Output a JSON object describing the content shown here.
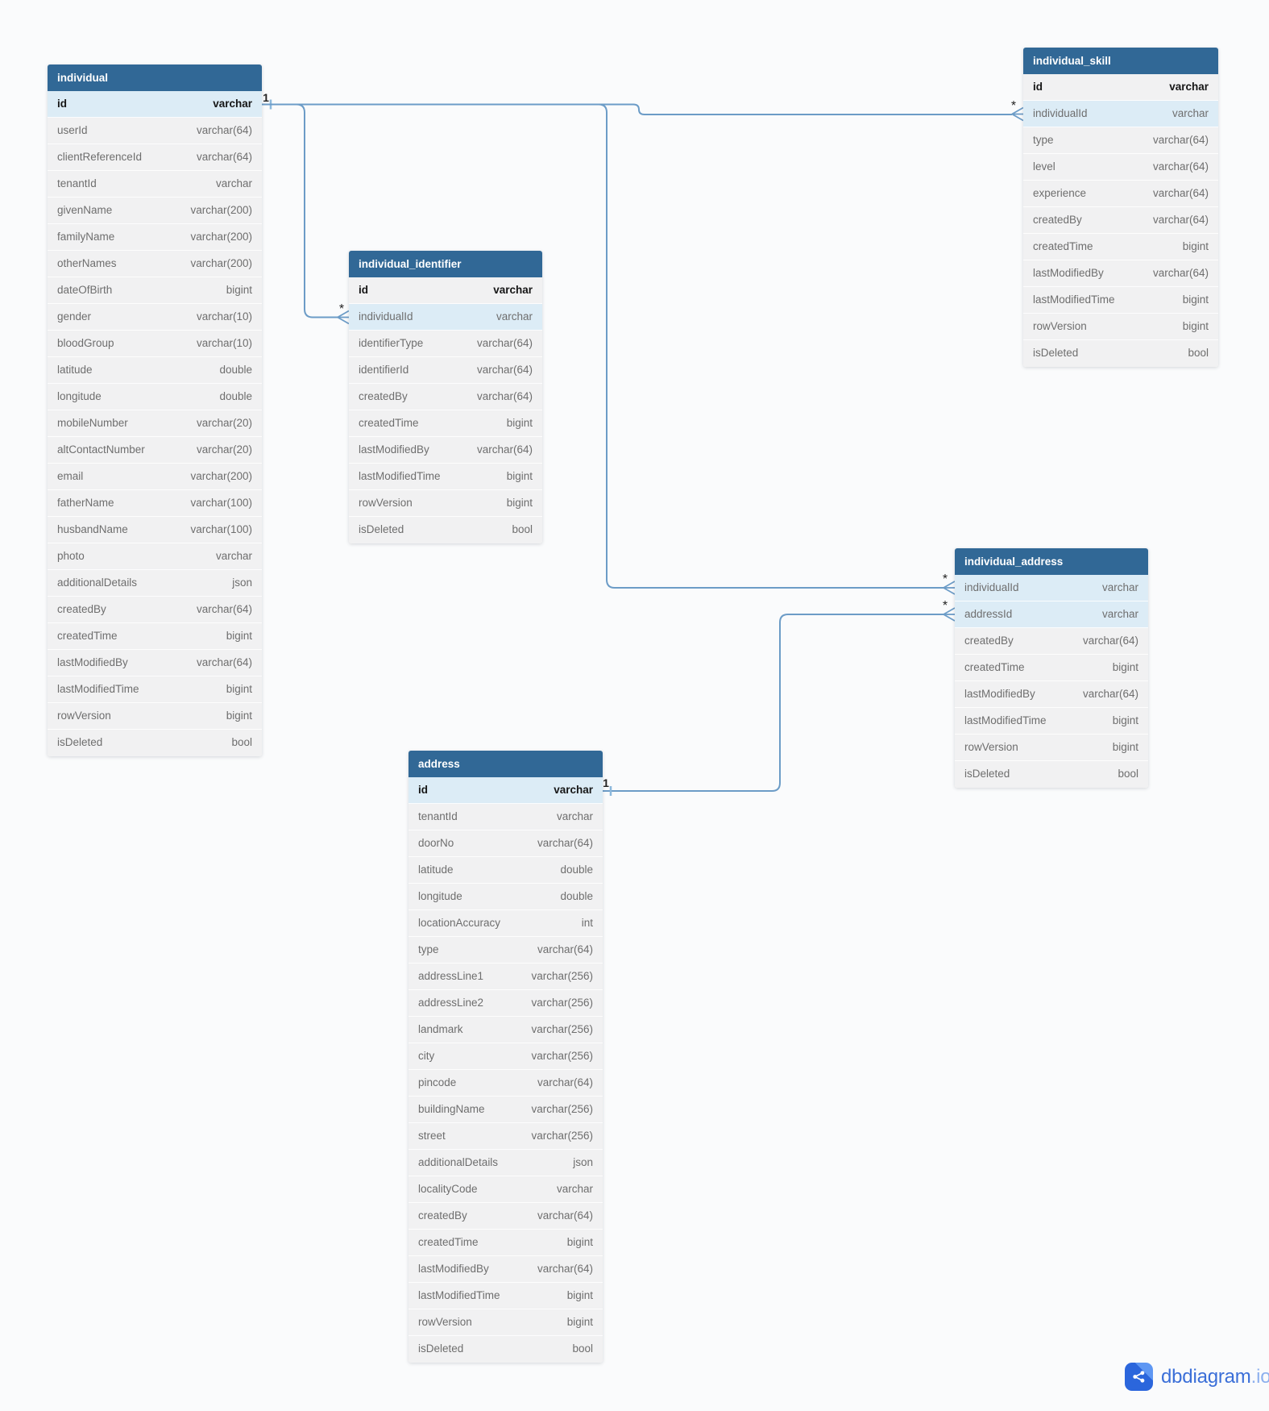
{
  "app": {
    "logo_brand": "dbdiagram",
    "logo_tld": ".io"
  },
  "colors": {
    "table_header": "#316896",
    "row_background": "#f1f1f2",
    "row_highlight": "#dcecf6",
    "relationship_line": "#6c9cc7",
    "logo_blue": "#3b6fd8"
  },
  "tables": [
    {
      "name": "individual",
      "fields": [
        {
          "name": "id",
          "type": "varchar",
          "pk": true,
          "highlight": true
        },
        {
          "name": "userId",
          "type": "varchar(64)"
        },
        {
          "name": "clientReferenceId",
          "type": "varchar(64)"
        },
        {
          "name": "tenantId",
          "type": "varchar"
        },
        {
          "name": "givenName",
          "type": "varchar(200)"
        },
        {
          "name": "familyName",
          "type": "varchar(200)"
        },
        {
          "name": "otherNames",
          "type": "varchar(200)"
        },
        {
          "name": "dateOfBirth",
          "type": "bigint"
        },
        {
          "name": "gender",
          "type": "varchar(10)"
        },
        {
          "name": "bloodGroup",
          "type": "varchar(10)"
        },
        {
          "name": "latitude",
          "type": "double"
        },
        {
          "name": "longitude",
          "type": "double"
        },
        {
          "name": "mobileNumber",
          "type": "varchar(20)"
        },
        {
          "name": "altContactNumber",
          "type": "varchar(20)"
        },
        {
          "name": "email",
          "type": "varchar(200)"
        },
        {
          "name": "fatherName",
          "type": "varchar(100)"
        },
        {
          "name": "husbandName",
          "type": "varchar(100)"
        },
        {
          "name": "photo",
          "type": "varchar"
        },
        {
          "name": "additionalDetails",
          "type": "json"
        },
        {
          "name": "createdBy",
          "type": "varchar(64)"
        },
        {
          "name": "createdTime",
          "type": "bigint"
        },
        {
          "name": "lastModifiedBy",
          "type": "varchar(64)"
        },
        {
          "name": "lastModifiedTime",
          "type": "bigint"
        },
        {
          "name": "rowVersion",
          "type": "bigint"
        },
        {
          "name": "isDeleted",
          "type": "bool"
        }
      ]
    },
    {
      "name": "individual_identifier",
      "fields": [
        {
          "name": "id",
          "type": "varchar",
          "pk": true
        },
        {
          "name": "individualId",
          "type": "varchar",
          "highlight": true
        },
        {
          "name": "identifierType",
          "type": "varchar(64)"
        },
        {
          "name": "identifierId",
          "type": "varchar(64)"
        },
        {
          "name": "createdBy",
          "type": "varchar(64)"
        },
        {
          "name": "createdTime",
          "type": "bigint"
        },
        {
          "name": "lastModifiedBy",
          "type": "varchar(64)"
        },
        {
          "name": "lastModifiedTime",
          "type": "bigint"
        },
        {
          "name": "rowVersion",
          "type": "bigint"
        },
        {
          "name": "isDeleted",
          "type": "bool"
        }
      ]
    },
    {
      "name": "individual_skill",
      "fields": [
        {
          "name": "id",
          "type": "varchar",
          "pk": true
        },
        {
          "name": "individualId",
          "type": "varchar",
          "highlight": true
        },
        {
          "name": "type",
          "type": "varchar(64)"
        },
        {
          "name": "level",
          "type": "varchar(64)"
        },
        {
          "name": "experience",
          "type": "varchar(64)"
        },
        {
          "name": "createdBy",
          "type": "varchar(64)"
        },
        {
          "name": "createdTime",
          "type": "bigint"
        },
        {
          "name": "lastModifiedBy",
          "type": "varchar(64)"
        },
        {
          "name": "lastModifiedTime",
          "type": "bigint"
        },
        {
          "name": "rowVersion",
          "type": "bigint"
        },
        {
          "name": "isDeleted",
          "type": "bool"
        }
      ]
    },
    {
      "name": "individual_address",
      "fields": [
        {
          "name": "individualId",
          "type": "varchar",
          "highlight": true
        },
        {
          "name": "addressId",
          "type": "varchar",
          "highlight": true
        },
        {
          "name": "createdBy",
          "type": "varchar(64)"
        },
        {
          "name": "createdTime",
          "type": "bigint"
        },
        {
          "name": "lastModifiedBy",
          "type": "varchar(64)"
        },
        {
          "name": "lastModifiedTime",
          "type": "bigint"
        },
        {
          "name": "rowVersion",
          "type": "bigint"
        },
        {
          "name": "isDeleted",
          "type": "bool"
        }
      ]
    },
    {
      "name": "address",
      "fields": [
        {
          "name": "id",
          "type": "varchar",
          "pk": true,
          "highlight": true
        },
        {
          "name": "tenantId",
          "type": "varchar"
        },
        {
          "name": "doorNo",
          "type": "varchar(64)"
        },
        {
          "name": "latitude",
          "type": "double"
        },
        {
          "name": "longitude",
          "type": "double"
        },
        {
          "name": "locationAccuracy",
          "type": "int"
        },
        {
          "name": "type",
          "type": "varchar(64)"
        },
        {
          "name": "addressLine1",
          "type": "varchar(256)"
        },
        {
          "name": "addressLine2",
          "type": "varchar(256)"
        },
        {
          "name": "landmark",
          "type": "varchar(256)"
        },
        {
          "name": "city",
          "type": "varchar(256)"
        },
        {
          "name": "pincode",
          "type": "varchar(64)"
        },
        {
          "name": "buildingName",
          "type": "varchar(256)"
        },
        {
          "name": "street",
          "type": "varchar(256)"
        },
        {
          "name": "additionalDetails",
          "type": "json"
        },
        {
          "name": "localityCode",
          "type": "varchar"
        },
        {
          "name": "createdBy",
          "type": "varchar(64)"
        },
        {
          "name": "createdTime",
          "type": "bigint"
        },
        {
          "name": "lastModifiedBy",
          "type": "varchar(64)"
        },
        {
          "name": "lastModifiedTime",
          "type": "bigint"
        },
        {
          "name": "rowVersion",
          "type": "bigint"
        },
        {
          "name": "isDeleted",
          "type": "bool"
        }
      ]
    }
  ],
  "relationships": [
    {
      "from_table": "individual",
      "from_field": "id",
      "from_cardinality": "1",
      "to_table": "individual_identifier",
      "to_field": "individualId",
      "to_cardinality": "*"
    },
    {
      "from_table": "individual",
      "from_field": "id",
      "from_cardinality": "1",
      "to_table": "individual_skill",
      "to_field": "individualId",
      "to_cardinality": "*"
    },
    {
      "from_table": "individual",
      "from_field": "id",
      "from_cardinality": "1",
      "to_table": "individual_address",
      "to_field": "individualId",
      "to_cardinality": "*"
    },
    {
      "from_table": "address",
      "from_field": "id",
      "from_cardinality": "1",
      "to_table": "individual_address",
      "to_field": "addressId",
      "to_cardinality": "*"
    }
  ]
}
